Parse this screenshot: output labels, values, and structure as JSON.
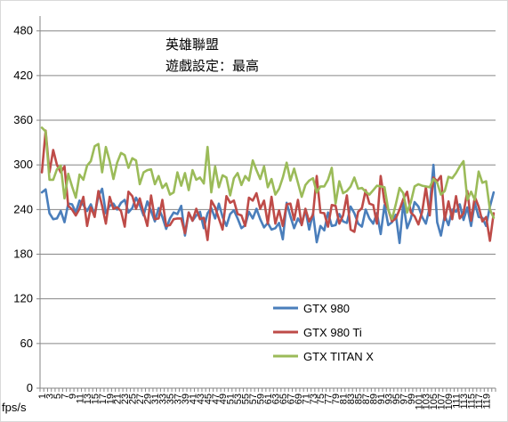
{
  "chart_data": {
    "type": "line",
    "title_lines": [
      "英雄聯盟",
      "遊戲設定：最高"
    ],
    "ylabel": "fps/s",
    "xlabel": "",
    "ylim": [
      0,
      500
    ],
    "yticks": [
      0,
      60,
      120,
      180,
      240,
      300,
      360,
      420,
      480
    ],
    "grid": true,
    "legend_position": "lower-right-inside",
    "x": [
      1,
      2,
      3,
      4,
      5,
      6,
      7,
      8,
      9,
      10,
      11,
      12,
      13,
      14,
      15,
      16,
      17,
      18,
      19,
      20,
      21,
      22,
      23,
      24,
      25,
      26,
      27,
      28,
      29,
      30,
      31,
      32,
      33,
      34,
      35,
      36,
      37,
      38,
      39,
      40,
      41,
      42,
      43,
      44,
      45,
      46,
      47,
      48,
      49,
      50,
      51,
      52,
      53,
      54,
      55,
      56,
      57,
      58,
      59,
      60,
      61,
      62,
      63,
      64,
      65,
      66,
      67,
      68,
      69,
      70,
      71,
      72,
      73,
      74,
      75,
      76,
      77,
      78,
      79,
      80,
      81,
      82,
      83,
      84,
      85,
      86,
      87,
      88,
      89,
      90,
      91,
      92,
      93,
      94,
      95,
      96,
      97,
      98,
      99,
      100,
      101,
      102,
      103,
      104,
      105,
      106,
      107,
      108,
      109,
      110,
      111,
      112,
      113,
      114,
      115,
      116,
      117,
      118,
      119,
      120,
      121
    ],
    "xticks": [
      1,
      3,
      5,
      7,
      9,
      11,
      13,
      15,
      17,
      19,
      21,
      23,
      25,
      27,
      29,
      31,
      33,
      35,
      37,
      39,
      41,
      43,
      45,
      47,
      49,
      51,
      53,
      55,
      57,
      59,
      61,
      63,
      65,
      67,
      69,
      71,
      73,
      75,
      77,
      79,
      81,
      83,
      85,
      87,
      89,
      91,
      93,
      95,
      97,
      99,
      101,
      103,
      105,
      107,
      109,
      111,
      113,
      115,
      117,
      119
    ],
    "series": [
      {
        "name": "GTX 980",
        "color": "#4a7ebb",
        "values": [
          263,
          267,
          235,
          227,
          228,
          238,
          223,
          248,
          247,
          236,
          252,
          246,
          238,
          247,
          233,
          258,
          268,
          235,
          245,
          248,
          240,
          249,
          253,
          236,
          242,
          256,
          246,
          232,
          251,
          238,
          224,
          242,
          230,
          214,
          228,
          236,
          234,
          245,
          205,
          236,
          225,
          232,
          237,
          215,
          235,
          242,
          228,
          248,
          230,
          218,
          234,
          239,
          228,
          215,
          219,
          237,
          228,
          241,
          227,
          216,
          222,
          213,
          215,
          222,
          200,
          249,
          231,
          215,
          228,
          220,
          240,
          213,
          235,
          196,
          218,
          212,
          236,
          218,
          219,
          234,
          224,
          222,
          244,
          235,
          221,
          217,
          240,
          228,
          221,
          235,
          207,
          246,
          219,
          223,
          233,
          195,
          249,
          215,
          228,
          250,
          244,
          230,
          221,
          243,
          300,
          223,
          205,
          232,
          219,
          240,
          237,
          247,
          226,
          243,
          218,
          249,
          230,
          229,
          218,
          244,
          263
        ]
      },
      {
        "name": "GTX 980 Ti",
        "color": "#be4b48",
        "values": [
          290,
          346,
          290,
          320,
          300,
          290,
          298,
          245,
          240,
          232,
          241,
          257,
          218,
          243,
          230,
          265,
          245,
          221,
          257,
          241,
          243,
          238,
          217,
          264,
          258,
          241,
          255,
          236,
          218,
          259,
          227,
          228,
          253,
          218,
          219,
          227,
          228,
          228,
          208,
          236,
          225,
          241,
          227,
          229,
          199,
          252,
          243,
          228,
          213,
          258,
          249,
          252,
          234,
          232,
          218,
          256,
          252,
          262,
          241,
          252,
          221,
          257,
          221,
          239,
          218,
          247,
          248,
          226,
          253,
          219,
          241,
          224,
          233,
          285,
          236,
          235,
          217,
          246,
          245,
          221,
          232,
          259,
          213,
          210,
          237,
          242,
          266,
          248,
          246,
          221,
          285,
          250,
          240,
          224,
          228,
          240,
          254,
          264,
          236,
          231,
          220,
          237,
          270,
          232,
          283,
          278,
          285,
          226,
          251,
          227,
          258,
          228,
          235,
          265,
          225,
          257,
          244,
          224,
          230,
          198,
          235
        ]
      },
      {
        "name": "GTX TITAN X",
        "color": "#9bbb59",
        "values": [
          350,
          345,
          280,
          280,
          294,
          299,
          255,
          288,
          271,
          256,
          287,
          280,
          299,
          305,
          325,
          328,
          290,
          324,
          305,
          281,
          303,
          316,
          313,
          296,
          309,
          306,
          274,
          290,
          293,
          294,
          274,
          285,
          269,
          275,
          260,
          263,
          290,
          272,
          289,
          266,
          293,
          280,
          283,
          275,
          324,
          263,
          298,
          270,
          286,
          283,
          259,
          282,
          289,
          273,
          285,
          279,
          306,
          293,
          281,
          298,
          270,
          281,
          260,
          268,
          283,
          303,
          279,
          295,
          276,
          257,
          273,
          279,
          282,
          263,
          271,
          271,
          280,
          296,
          248,
          278,
          262,
          265,
          271,
          283,
          268,
          269,
          264,
          260,
          266,
          272,
          271,
          270,
          240,
          227,
          247,
          269,
          262,
          236,
          250,
          271,
          274,
          272,
          271,
          270,
          281,
          276,
          260,
          265,
          284,
          282,
          289,
          298,
          305,
          253,
          264,
          253,
          291,
          276,
          278,
          240,
          229
        ]
      }
    ]
  }
}
